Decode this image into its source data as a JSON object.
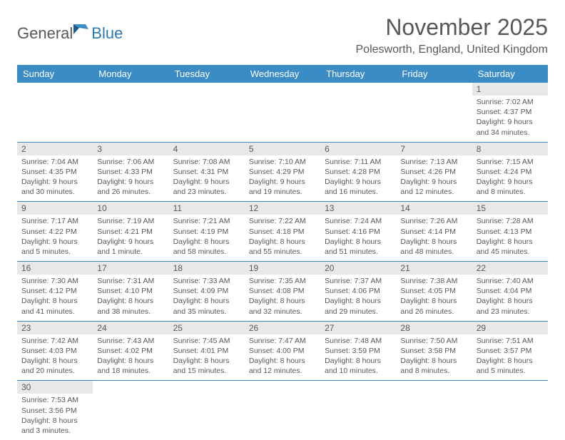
{
  "logo": {
    "general": "General",
    "blue": "Blue"
  },
  "title": "November 2025",
  "location": "Polesworth, England, United Kingdom",
  "header_bg": "#3b8bc4",
  "gray_bg": "#e8e8e8",
  "text_color": "#585858",
  "days_of_week": [
    "Sunday",
    "Monday",
    "Tuesday",
    "Wednesday",
    "Thursday",
    "Friday",
    "Saturday"
  ],
  "weeks": [
    [
      null,
      null,
      null,
      null,
      null,
      null,
      {
        "n": "1",
        "sr": "Sunrise: 7:02 AM",
        "ss": "Sunset: 4:37 PM",
        "dl": "Daylight: 9 hours and 34 minutes."
      }
    ],
    [
      {
        "n": "2",
        "sr": "Sunrise: 7:04 AM",
        "ss": "Sunset: 4:35 PM",
        "dl": "Daylight: 9 hours and 30 minutes."
      },
      {
        "n": "3",
        "sr": "Sunrise: 7:06 AM",
        "ss": "Sunset: 4:33 PM",
        "dl": "Daylight: 9 hours and 26 minutes."
      },
      {
        "n": "4",
        "sr": "Sunrise: 7:08 AM",
        "ss": "Sunset: 4:31 PM",
        "dl": "Daylight: 9 hours and 23 minutes."
      },
      {
        "n": "5",
        "sr": "Sunrise: 7:10 AM",
        "ss": "Sunset: 4:29 PM",
        "dl": "Daylight: 9 hours and 19 minutes."
      },
      {
        "n": "6",
        "sr": "Sunrise: 7:11 AM",
        "ss": "Sunset: 4:28 PM",
        "dl": "Daylight: 9 hours and 16 minutes."
      },
      {
        "n": "7",
        "sr": "Sunrise: 7:13 AM",
        "ss": "Sunset: 4:26 PM",
        "dl": "Daylight: 9 hours and 12 minutes."
      },
      {
        "n": "8",
        "sr": "Sunrise: 7:15 AM",
        "ss": "Sunset: 4:24 PM",
        "dl": "Daylight: 9 hours and 8 minutes."
      }
    ],
    [
      {
        "n": "9",
        "sr": "Sunrise: 7:17 AM",
        "ss": "Sunset: 4:22 PM",
        "dl": "Daylight: 9 hours and 5 minutes."
      },
      {
        "n": "10",
        "sr": "Sunrise: 7:19 AM",
        "ss": "Sunset: 4:21 PM",
        "dl": "Daylight: 9 hours and 1 minute."
      },
      {
        "n": "11",
        "sr": "Sunrise: 7:21 AM",
        "ss": "Sunset: 4:19 PM",
        "dl": "Daylight: 8 hours and 58 minutes."
      },
      {
        "n": "12",
        "sr": "Sunrise: 7:22 AM",
        "ss": "Sunset: 4:18 PM",
        "dl": "Daylight: 8 hours and 55 minutes."
      },
      {
        "n": "13",
        "sr": "Sunrise: 7:24 AM",
        "ss": "Sunset: 4:16 PM",
        "dl": "Daylight: 8 hours and 51 minutes."
      },
      {
        "n": "14",
        "sr": "Sunrise: 7:26 AM",
        "ss": "Sunset: 4:14 PM",
        "dl": "Daylight: 8 hours and 48 minutes."
      },
      {
        "n": "15",
        "sr": "Sunrise: 7:28 AM",
        "ss": "Sunset: 4:13 PM",
        "dl": "Daylight: 8 hours and 45 minutes."
      }
    ],
    [
      {
        "n": "16",
        "sr": "Sunrise: 7:30 AM",
        "ss": "Sunset: 4:12 PM",
        "dl": "Daylight: 8 hours and 41 minutes."
      },
      {
        "n": "17",
        "sr": "Sunrise: 7:31 AM",
        "ss": "Sunset: 4:10 PM",
        "dl": "Daylight: 8 hours and 38 minutes."
      },
      {
        "n": "18",
        "sr": "Sunrise: 7:33 AM",
        "ss": "Sunset: 4:09 PM",
        "dl": "Daylight: 8 hours and 35 minutes."
      },
      {
        "n": "19",
        "sr": "Sunrise: 7:35 AM",
        "ss": "Sunset: 4:08 PM",
        "dl": "Daylight: 8 hours and 32 minutes."
      },
      {
        "n": "20",
        "sr": "Sunrise: 7:37 AM",
        "ss": "Sunset: 4:06 PM",
        "dl": "Daylight: 8 hours and 29 minutes."
      },
      {
        "n": "21",
        "sr": "Sunrise: 7:38 AM",
        "ss": "Sunset: 4:05 PM",
        "dl": "Daylight: 8 hours and 26 minutes."
      },
      {
        "n": "22",
        "sr": "Sunrise: 7:40 AM",
        "ss": "Sunset: 4:04 PM",
        "dl": "Daylight: 8 hours and 23 minutes."
      }
    ],
    [
      {
        "n": "23",
        "sr": "Sunrise: 7:42 AM",
        "ss": "Sunset: 4:03 PM",
        "dl": "Daylight: 8 hours and 20 minutes."
      },
      {
        "n": "24",
        "sr": "Sunrise: 7:43 AM",
        "ss": "Sunset: 4:02 PM",
        "dl": "Daylight: 8 hours and 18 minutes."
      },
      {
        "n": "25",
        "sr": "Sunrise: 7:45 AM",
        "ss": "Sunset: 4:01 PM",
        "dl": "Daylight: 8 hours and 15 minutes."
      },
      {
        "n": "26",
        "sr": "Sunrise: 7:47 AM",
        "ss": "Sunset: 4:00 PM",
        "dl": "Daylight: 8 hours and 12 minutes."
      },
      {
        "n": "27",
        "sr": "Sunrise: 7:48 AM",
        "ss": "Sunset: 3:59 PM",
        "dl": "Daylight: 8 hours and 10 minutes."
      },
      {
        "n": "28",
        "sr": "Sunrise: 7:50 AM",
        "ss": "Sunset: 3:58 PM",
        "dl": "Daylight: 8 hours and 8 minutes."
      },
      {
        "n": "29",
        "sr": "Sunrise: 7:51 AM",
        "ss": "Sunset: 3:57 PM",
        "dl": "Daylight: 8 hours and 5 minutes."
      }
    ],
    [
      {
        "n": "30",
        "sr": "Sunrise: 7:53 AM",
        "ss": "Sunset: 3:56 PM",
        "dl": "Daylight: 8 hours and 3 minutes."
      },
      null,
      null,
      null,
      null,
      null,
      null
    ]
  ]
}
